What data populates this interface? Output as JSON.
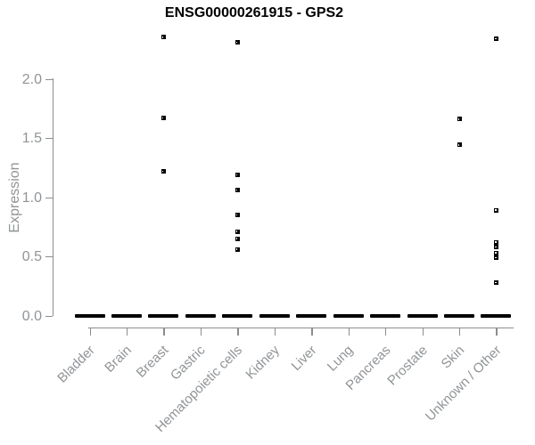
{
  "title": "ENSG00000261915 - GPS2",
  "colors": {
    "background": "#ffffff",
    "title_text": "#000000",
    "axis_line": "#8a8d90",
    "axis_text": "#909497",
    "point": "#000000"
  },
  "chart_data": {
    "type": "scatter",
    "title": "ENSG00000261915 - GPS2",
    "xlabel": "",
    "ylabel": "Expression",
    "ylim": [
      0,
      2.4
    ],
    "grid": false,
    "legend": "none",
    "marker": "small-open-square",
    "yticks": [
      0.0,
      0.5,
      1.0,
      1.5,
      2.0
    ],
    "ytick_labels": [
      "0.0",
      "0.5",
      "1.0",
      "1.5",
      "2.0"
    ],
    "categories": [
      "Bladder",
      "Brain",
      "Breast",
      "Gastric",
      "Hematopoietic cells",
      "Kidney",
      "Liver",
      "Lung",
      "Pancreas",
      "Prostate",
      "Skin",
      "Unknown / Other"
    ],
    "baseline_note": "every category has a dense cluster of overlapping points at expression 0 rendered as a thick black dash",
    "series": [
      {
        "category": "Bladder",
        "zero_cluster": true,
        "outliers": []
      },
      {
        "category": "Brain",
        "zero_cluster": true,
        "outliers": []
      },
      {
        "category": "Breast",
        "zero_cluster": true,
        "outliers": [
          2.35,
          1.67,
          1.22
        ]
      },
      {
        "category": "Gastric",
        "zero_cluster": true,
        "outliers": []
      },
      {
        "category": "Hematopoietic cells",
        "zero_cluster": true,
        "outliers": [
          2.31,
          1.19,
          1.06,
          0.85,
          0.71,
          0.65,
          0.56
        ]
      },
      {
        "category": "Kidney",
        "zero_cluster": true,
        "outliers": []
      },
      {
        "category": "Liver",
        "zero_cluster": true,
        "outliers": []
      },
      {
        "category": "Lung",
        "zero_cluster": true,
        "outliers": []
      },
      {
        "category": "Pancreas",
        "zero_cluster": true,
        "outliers": []
      },
      {
        "category": "Prostate",
        "zero_cluster": true,
        "outliers": []
      },
      {
        "category": "Skin",
        "zero_cluster": true,
        "outliers": [
          1.66,
          1.44
        ]
      },
      {
        "category": "Unknown / Other",
        "zero_cluster": true,
        "outliers": [
          2.34,
          0.89,
          0.62,
          0.58,
          0.53,
          0.49,
          0.28
        ]
      }
    ]
  }
}
